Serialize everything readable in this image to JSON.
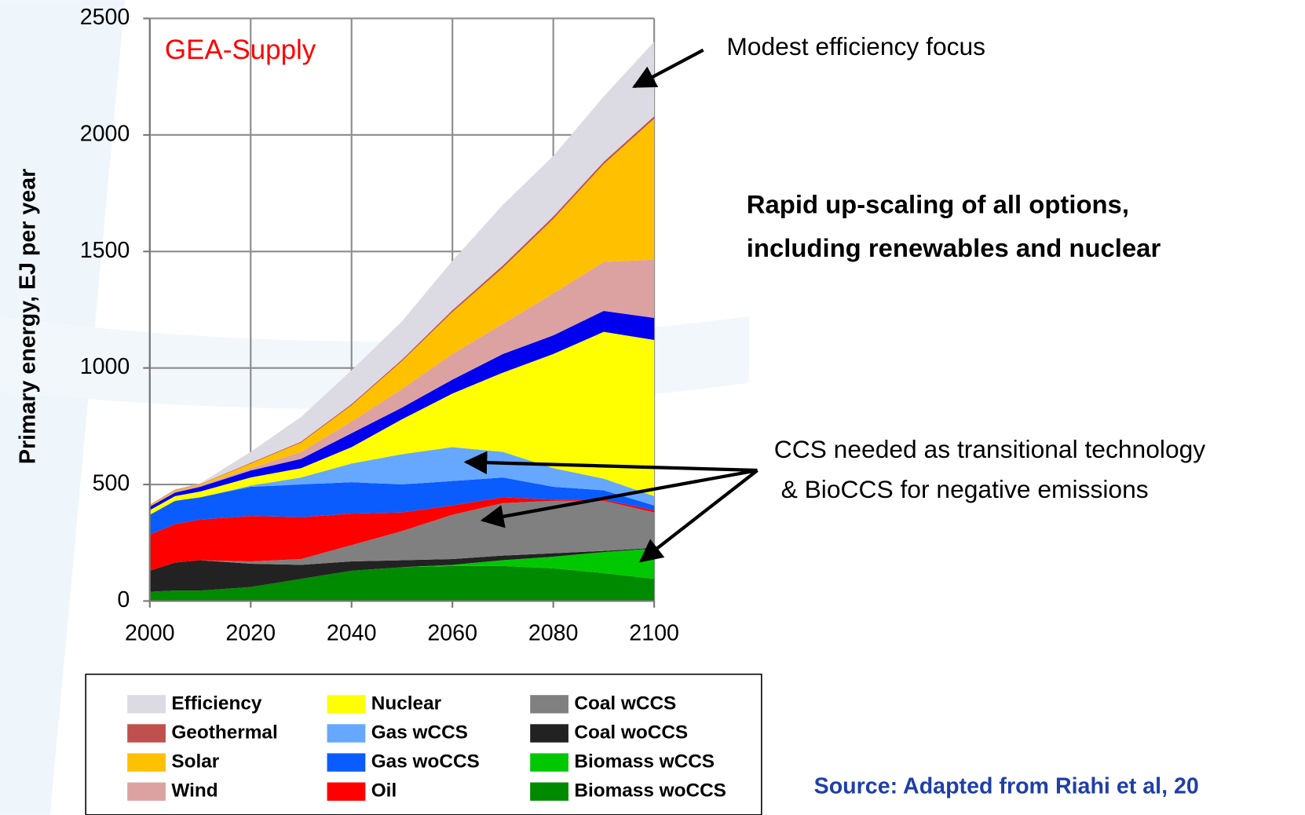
{
  "chart_data": {
    "type": "stacked_area",
    "y_label": "Primary energy, EJ per year",
    "x": [
      2000,
      2005,
      2010,
      2020,
      2030,
      2040,
      2050,
      2060,
      2070,
      2080,
      2090,
      2100
    ],
    "xlim": [
      2000,
      2100
    ],
    "xticks": [
      2000,
      2020,
      2040,
      2060,
      2080,
      2100
    ],
    "ylim": [
      0,
      2500
    ],
    "yticks": [
      0,
      500,
      1000,
      1500,
      2000,
      2500
    ],
    "grid": true,
    "series": [
      {
        "name": "Biomass woCCS",
        "color": "#008a00",
        "values": [
          40,
          45,
          45,
          60,
          95,
          130,
          145,
          150,
          150,
          140,
          120,
          95
        ]
      },
      {
        "name": "Biomass wCCS",
        "color": "#00c800",
        "values": [
          0,
          0,
          0,
          0,
          0,
          0,
          0,
          5,
          25,
          50,
          90,
          130
        ]
      },
      {
        "name": "Coal woCCS",
        "color": "#222222",
        "values": [
          90,
          120,
          130,
          100,
          60,
          40,
          30,
          25,
          20,
          15,
          5,
          3
        ]
      },
      {
        "name": "Coal wCCS",
        "color": "#808080",
        "values": [
          0,
          0,
          0,
          10,
          25,
          70,
          125,
          190,
          225,
          225,
          215,
          152
        ]
      },
      {
        "name": "Oil",
        "color": "#ff0000",
        "values": [
          155,
          165,
          175,
          195,
          180,
          135,
          80,
          40,
          25,
          5,
          5,
          10
        ]
      },
      {
        "name": "Gas woCCS",
        "color": "#0a5cff",
        "values": [
          85,
          100,
          95,
          125,
          140,
          135,
          120,
          105,
          85,
          55,
          40,
          20
        ]
      },
      {
        "name": "Gas wCCS",
        "color": "#66a8ff",
        "values": [
          0,
          0,
          0,
          5,
          30,
          80,
          130,
          145,
          110,
          80,
          50,
          40
        ]
      },
      {
        "name": "Nuclear",
        "color": "#ffff00",
        "values": [
          20,
          20,
          25,
          35,
          40,
          70,
          150,
          230,
          340,
          490,
          630,
          670
        ]
      },
      {
        "name": null,
        "color": "#0000ee",
        "values": [
          15,
          15,
          20,
          30,
          40,
          60,
          50,
          60,
          80,
          80,
          90,
          95
        ]
      },
      {
        "name": "Wind",
        "color": "#dca2a2",
        "values": [
          0,
          5,
          5,
          10,
          30,
          50,
          80,
          110,
          130,
          180,
          210,
          250
        ]
      },
      {
        "name": "Solar",
        "color": "#ffc000",
        "values": [
          5,
          5,
          5,
          20,
          40,
          70,
          120,
          180,
          240,
          320,
          420,
          605
        ]
      },
      {
        "name": "Geothermal",
        "color": "#c0504d",
        "values": [
          2,
          2,
          2,
          3,
          4,
          5,
          6,
          8,
          10,
          10,
          10,
          10
        ]
      },
      {
        "name": "Efficiency",
        "color": "#dcdae2",
        "values": [
          3,
          3,
          3,
          47,
          106,
          145,
          164,
          212,
          260,
          260,
          280,
          320
        ]
      }
    ],
    "annotations": [
      "GEA-Supply",
      "Modest efficiency focus",
      "Rapid up-scaling of all options,",
      "including renewables and nuclear",
      "CCS needed as transitional technology",
      " & BioCCS for negative emissions",
      "Source: Adapted from Riahi et al, 20"
    ]
  }
}
